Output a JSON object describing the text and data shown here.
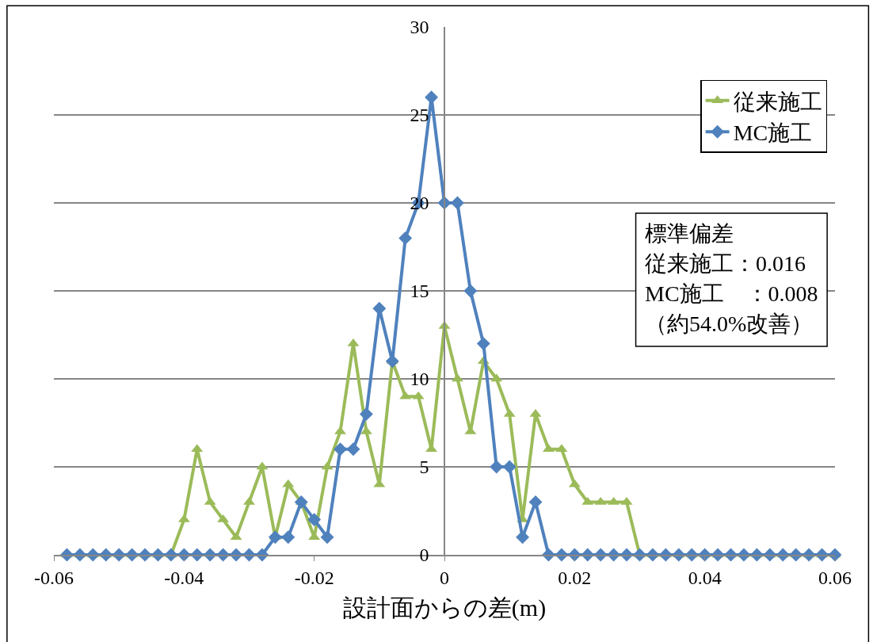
{
  "chart_data": {
    "type": "line",
    "xlabel": "設計面からの差(m)",
    "x": [
      -0.058,
      -0.056,
      -0.054,
      -0.052,
      -0.05,
      -0.048,
      -0.046,
      -0.044,
      -0.042,
      -0.04,
      -0.038,
      -0.036,
      -0.034,
      -0.032,
      -0.03,
      -0.028,
      -0.026,
      -0.024,
      -0.022,
      -0.02,
      -0.018,
      -0.016,
      -0.014,
      -0.012,
      -0.01,
      -0.008,
      -0.006,
      -0.004,
      -0.002,
      0,
      0.002,
      0.004,
      0.006,
      0.008,
      0.01,
      0.012,
      0.014,
      0.016,
      0.018,
      0.02,
      0.022,
      0.024,
      0.026,
      0.028,
      0.03,
      0.032,
      0.034,
      0.036,
      0.038,
      0.04,
      0.042,
      0.044,
      0.046,
      0.048,
      0.05,
      0.052,
      0.054,
      0.056,
      0.058,
      0.06
    ],
    "series": [
      {
        "name": "従来施工",
        "color": "#9bbb59",
        "marker": "triangle",
        "values": [
          0,
          0,
          0,
          0,
          0,
          0,
          0,
          0,
          0,
          2,
          6,
          3,
          2,
          1,
          3,
          5,
          1,
          4,
          3,
          1,
          5,
          7,
          12,
          7,
          4,
          11,
          9,
          9,
          6,
          13,
          10,
          7,
          11,
          10,
          8,
          2,
          8,
          6,
          6,
          4,
          3,
          3,
          3,
          3,
          0,
          0,
          0,
          0,
          0,
          0,
          0,
          0,
          0,
          0,
          0,
          0,
          0,
          0,
          0,
          0
        ]
      },
      {
        "name": "MC施工",
        "color": "#4f81bd",
        "marker": "diamond",
        "values": [
          0,
          0,
          0,
          0,
          0,
          0,
          0,
          0,
          0,
          0,
          0,
          0,
          0,
          0,
          0,
          0,
          1,
          1,
          3,
          2,
          1,
          6,
          6,
          8,
          14,
          11,
          18,
          20,
          26,
          20,
          20,
          15,
          12,
          5,
          5,
          1,
          3,
          0,
          0,
          0,
          0,
          0,
          0,
          0,
          0,
          0,
          0,
          0,
          0,
          0,
          0,
          0,
          0,
          0,
          0,
          0,
          0,
          0,
          0,
          0
        ]
      }
    ],
    "xlim": [
      -0.06,
      0.06
    ],
    "xticks": [
      {
        "value": -0.06,
        "label": "-0.06"
      },
      {
        "value": -0.04,
        "label": "-0.04"
      },
      {
        "value": -0.02,
        "label": "-0.02"
      },
      0,
      {
        "value": 0.02,
        "label": "0.02"
      },
      {
        "value": 0.04,
        "label": "0.04"
      },
      {
        "value": 0.06,
        "label": "0.06"
      }
    ],
    "ylim": [
      0,
      30
    ],
    "yticks": [
      0,
      5,
      10,
      15,
      20,
      25,
      30
    ],
    "grid": "y",
    "legend": "top right",
    "annotations": [
      "標準偏差",
      "従来施工：0.016",
      "MC施工　：0.008",
      "（約54.0%改善）"
    ]
  }
}
